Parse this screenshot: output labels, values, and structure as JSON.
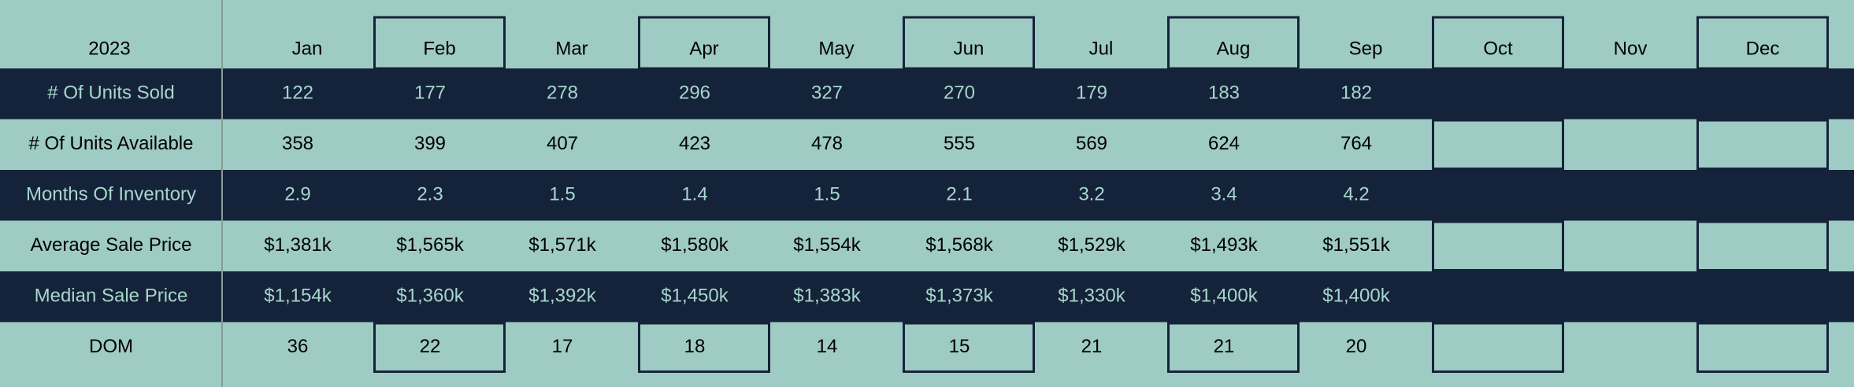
{
  "header": {
    "year": "2023",
    "months": [
      "Jan",
      "Feb",
      "Mar",
      "Apr",
      "May",
      "Jun",
      "Jul",
      "Aug",
      "Sep",
      "Oct",
      "Nov",
      "Dec"
    ]
  },
  "table": {
    "rows": [
      {
        "label": "# Of Units Sold",
        "values": [
          122,
          177,
          278,
          296,
          327,
          270,
          179,
          183,
          182
        ]
      },
      {
        "label": "# Of Units Available",
        "values": [
          358,
          399,
          407,
          423,
          478,
          555,
          569,
          624,
          764
        ]
      },
      {
        "label": "Months Of Inventory",
        "values": [
          2.9,
          2.3,
          1.5,
          1.4,
          1.5,
          2.1,
          3.2,
          3.4,
          4.2
        ]
      },
      {
        "label": "Average Sale Price",
        "values": [
          "$1,381k",
          "$1,565k",
          "$1,571k",
          "$1,580k",
          "$1,554k",
          "$1,568k",
          "$1,529k",
          "$1,493k",
          "$1,551k"
        ]
      },
      {
        "label": "Median Sale Price",
        "values": [
          "$1,154k",
          "$1,360k",
          "$1,392k",
          "$1,450k",
          "$1,383k",
          "$1,373k",
          "$1,330k",
          "$1,400k",
          "$1,400k"
        ]
      },
      {
        "label": "DOM",
        "values": [
          36,
          22,
          17,
          18,
          14,
          15,
          21,
          21,
          20
        ]
      }
    ]
  }
}
